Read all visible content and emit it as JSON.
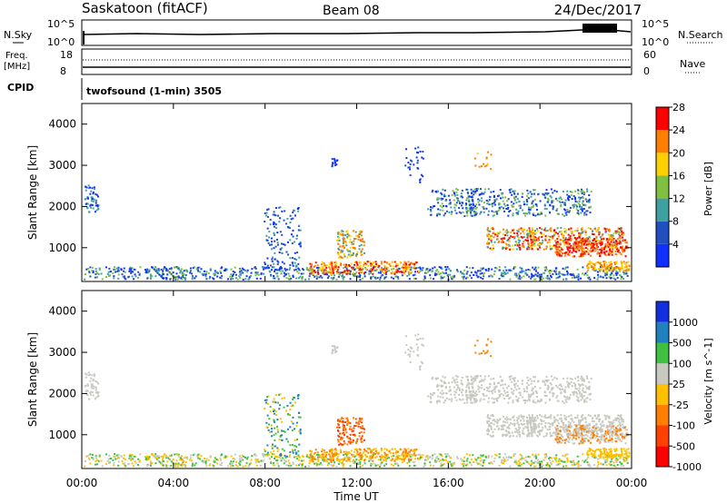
{
  "header": {
    "title": "Saskatoon (fitACF)",
    "beam": "Beam 08",
    "date": "24/Dec/2017"
  },
  "top_panels": {
    "nsky_label": "N.Sky",
    "nsky_ticks": [
      "10^5",
      "10^0"
    ],
    "nsearch_label": "N.Search",
    "nsearch_ticks": [
      "10^5",
      "10^0"
    ],
    "freq_label": "Freq.",
    "freq_unit": "[MHz]",
    "freq_ticks": [
      "18",
      "8"
    ],
    "nave_label": "Nave",
    "nave_ticks": [
      "60",
      "0"
    ],
    "cpid_label": "CPID",
    "cpid_text": "twofsound (1-min) 3505"
  },
  "chart_data": [
    {
      "type": "heatmap",
      "name": "power",
      "ylabel": "Slant Range [km]",
      "y_ticks": [
        1000,
        2000,
        3000,
        4000
      ],
      "ylim": [
        180,
        4500
      ],
      "xlim": [
        0,
        24
      ],
      "colorbar_label": "Power [dB]",
      "colorbar_ticks": [
        "4",
        "8",
        "12",
        "16",
        "20",
        "24",
        "28"
      ],
      "colorbar_colors": [
        "#1030ff",
        "#2050c0",
        "#40a0a0",
        "#80c040",
        "#ffd000",
        "#ff8000",
        "#ff0000"
      ]
    },
    {
      "type": "heatmap",
      "name": "velocity",
      "ylabel": "Slant Range [km]",
      "y_ticks": [
        1000,
        2000,
        3000,
        4000
      ],
      "ylim": [
        180,
        4500
      ],
      "xlim": [
        0,
        24
      ],
      "colorbar_label": "Velocity [m s^-1]",
      "colorbar_ticks": [
        "1000",
        "500",
        "100",
        "25",
        "-25",
        "-100",
        "-500",
        "-1000"
      ],
      "colorbar_colors": [
        "#1030e0",
        "#2080c0",
        "#40c040",
        "#c8c8c0",
        "#ffc000",
        "#ff8000",
        "#ff4000",
        "#ff0000"
      ]
    }
  ],
  "x_axis": {
    "label": "Time UT",
    "ticks": [
      "00:00",
      "04:00",
      "08:00",
      "12:00",
      "16:00",
      "20:00",
      "00:00"
    ]
  }
}
